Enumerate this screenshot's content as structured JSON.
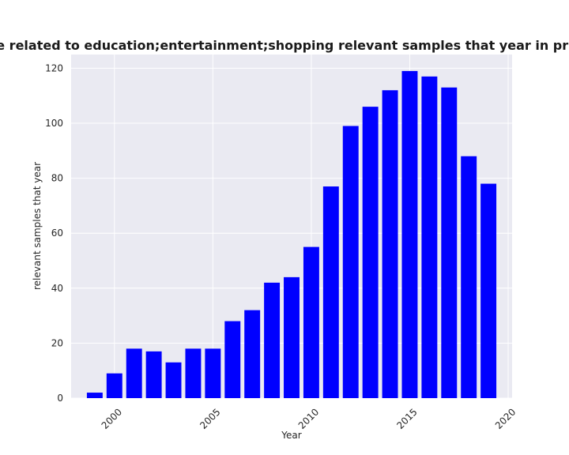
{
  "chart_data": {
    "type": "bar",
    "title": "ories are related to education;entertainment;shopping relevant samples that year in privacy po",
    "xlabel": "Year",
    "ylabel": "relevant samples that year",
    "x": [
      1999,
      2000,
      2001,
      2002,
      2003,
      2004,
      2005,
      2006,
      2007,
      2008,
      2009,
      2010,
      2011,
      2012,
      2013,
      2014,
      2015,
      2016,
      2017,
      2018,
      2019
    ],
    "values": [
      2,
      9,
      18,
      17,
      13,
      18,
      18,
      28,
      32,
      42,
      44,
      55,
      77,
      99,
      106,
      112,
      119,
      117,
      113,
      88,
      78
    ],
    "xlim": [
      1997.8,
      2020.2
    ],
    "ylim": [
      0,
      125
    ],
    "xticks": [
      2000,
      2005,
      2010,
      2015,
      2020
    ],
    "yticks": [
      0,
      20,
      40,
      60,
      80,
      100,
      120
    ],
    "bar_color": "#0000ff",
    "background": "#eaeaf2",
    "grid": true,
    "legend": "none"
  }
}
